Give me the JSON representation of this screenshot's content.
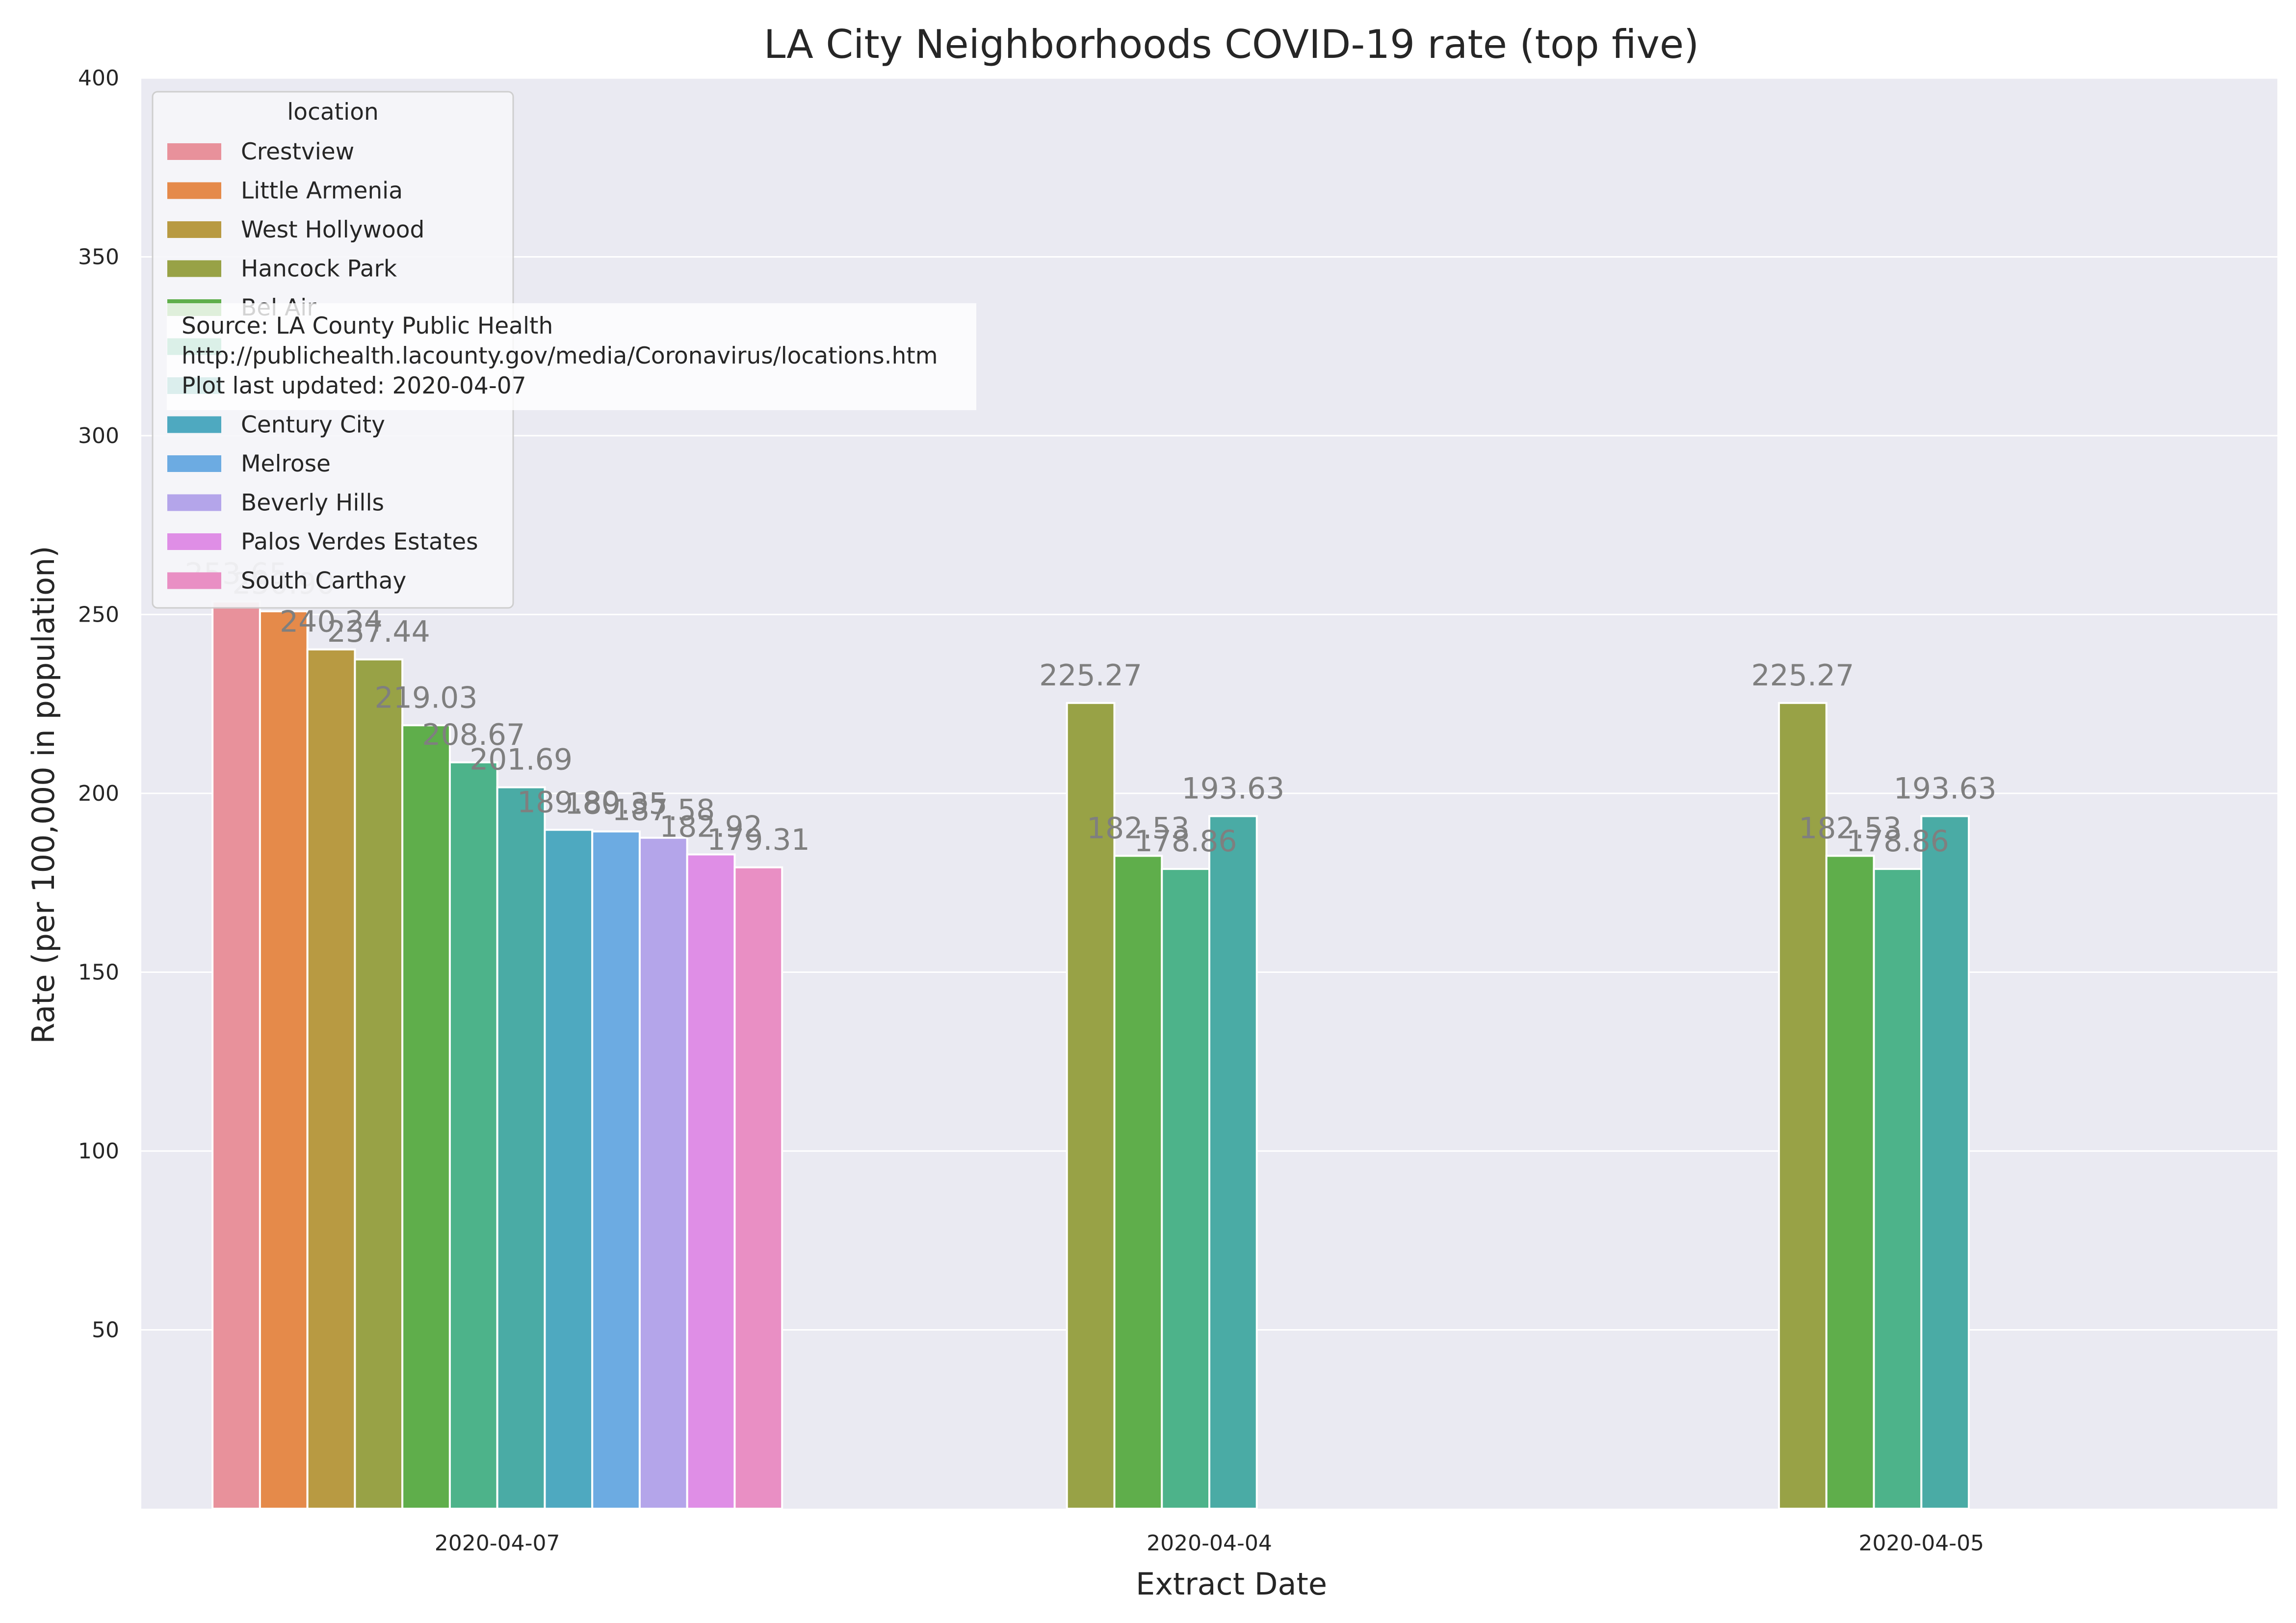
{
  "chart_data": {
    "type": "bar",
    "title": "LA City Neighborhoods COVID-19 rate (top five)",
    "xlabel": "Extract Date",
    "ylabel": "Rate (per 100,000 in population)",
    "ylim": [
      0,
      400
    ],
    "yticks": [
      50,
      100,
      150,
      200,
      250,
      300,
      350,
      400
    ],
    "categories": [
      "2020-04-07",
      "2020-04-04",
      "2020-04-05"
    ],
    "legend_title": "location",
    "legend_placement": "top-left",
    "grid": true,
    "series": [
      {
        "name": "Crestview",
        "color": "#e8919b",
        "values": [
          253.65,
          null,
          null
        ],
        "labels": [
          "253.65",
          "",
          ""
        ]
      },
      {
        "name": "Little Armenia",
        "color": "#e58a4a",
        "values": [
          250.9,
          null,
          null
        ],
        "labels": [
          "250.90",
          "",
          ""
        ]
      },
      {
        "name": "West Hollywood",
        "color": "#b89a42",
        "values": [
          240.24,
          null,
          null
        ],
        "labels": [
          "240.24",
          "",
          ""
        ]
      },
      {
        "name": "Hancock Park",
        "color": "#98a246",
        "values": [
          237.44,
          225.27,
          225.27
        ],
        "labels": [
          "237.44",
          "225.27",
          "225.27"
        ]
      },
      {
        "name": "Bel Air",
        "color": "#5fae4b",
        "values": [
          219.03,
          182.53,
          182.53
        ],
        "labels": [
          "219.03",
          "182.53",
          "182.53"
        ]
      },
      {
        "name": "",
        "color": "#4db38a",
        "values": [
          208.67,
          178.86,
          178.86
        ],
        "labels": [
          "208.67",
          "178.86",
          "178.86"
        ]
      },
      {
        "name": "",
        "color": "#4aaba5",
        "values": [
          201.69,
          193.63,
          193.63
        ],
        "labels": [
          "201.69",
          "193.63",
          "193.63"
        ]
      },
      {
        "name": "Century City",
        "color": "#4ea9c0",
        "values": [
          189.8,
          null,
          null
        ],
        "labels": [
          "189.80",
          "",
          ""
        ]
      },
      {
        "name": "Melrose",
        "color": "#6cabe2",
        "values": [
          189.35,
          null,
          null
        ],
        "labels": [
          "189.35",
          "",
          ""
        ]
      },
      {
        "name": "Beverly Hills",
        "color": "#b4a5ea",
        "values": [
          187.58,
          null,
          null
        ],
        "labels": [
          "187.58",
          "",
          ""
        ]
      },
      {
        "name": "Palos Verdes Estates",
        "color": "#df8ee6",
        "values": [
          182.92,
          null,
          null
        ],
        "labels": [
          "182.92",
          "",
          ""
        ]
      },
      {
        "name": "South Carthay",
        "color": "#e98fc4",
        "values": [
          179.31,
          null,
          null
        ],
        "labels": [
          "179.31",
          "",
          ""
        ]
      }
    ],
    "annotation": {
      "lines": [
        "Source: LA County Public Health",
        "http://publichealth.lacounty.gov/media/Coronavirus/locations.htm",
        "Plot last updated: 2020-04-07"
      ]
    }
  }
}
